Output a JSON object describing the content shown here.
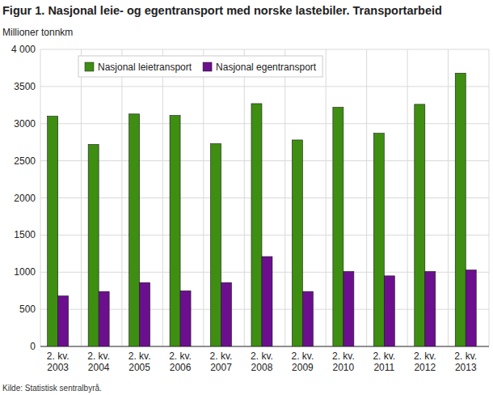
{
  "chart_data": {
    "type": "bar",
    "title": "Figur 1. Nasjonal leie- og egentransport med norske lastebiler. Transportarbeid",
    "y_label": "Millioner tonnkm",
    "source": "Kilde: Statistisk sentralbyrå.",
    "categories": [
      "2. kv.\n2003",
      "2. kv.\n2004",
      "2. kv.\n2005",
      "2. kv.\n2006",
      "2. kv.\n2007",
      "2. kv.\n2008",
      "2. kv.\n2009",
      "2. kv.\n2010",
      "2. kv.\n2011",
      "2. kv.\n2012",
      "2. kv.\n2013"
    ],
    "series": [
      {
        "name": "Nasjonal leietransport",
        "color": "#3e8e12",
        "values": [
          3100,
          2720,
          3130,
          3110,
          2730,
          3270,
          2780,
          3220,
          2870,
          3260,
          3680
        ]
      },
      {
        "name": "Nasjonal egentransport",
        "color": "#6b0f8e",
        "values": [
          680,
          740,
          860,
          750,
          860,
          1210,
          740,
          1010,
          950,
          1010,
          1030
        ]
      }
    ],
    "ylim": [
      0,
      4000
    ],
    "yticks": [
      0,
      500,
      1000,
      1500,
      2000,
      2500,
      3000,
      3500,
      {
        "value": 4000,
        "label": "4 000"
      }
    ],
    "grid": true,
    "legend": "top-left"
  }
}
